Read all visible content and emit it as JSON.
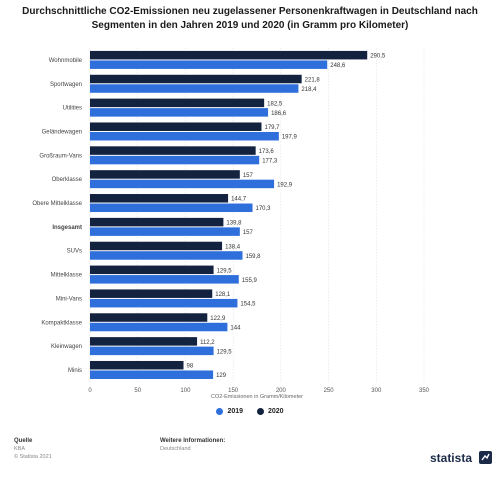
{
  "title": "Durchschnittliche CO2-Emissionen neu zugelassener Personenkraftwagen in Deutschland nach Segmenten in den Jahren 2019 und 2020 (in Gramm pro Kilometer)",
  "chart_data": {
    "type": "bar",
    "orientation": "horizontal",
    "categories": [
      "Wohnmobile",
      "Sportwagen",
      "Utilities",
      "Geländewagen",
      "Großraum-Vans",
      "Oberklasse",
      "Obere Mittelklasse",
      "Insgesamt",
      "SUVs",
      "Mittelklasse",
      "Mini-Vans",
      "Kompaktklasse",
      "Kleinwagen",
      "Minis"
    ],
    "bold_category": "Insgesamt",
    "series": [
      {
        "name": "2020",
        "color": "#13223f",
        "values": [
          290.5,
          221.8,
          182.5,
          179.7,
          173.6,
          157,
          144.7,
          139.8,
          138.4,
          129.5,
          128.1,
          122.9,
          112.2,
          98
        ]
      },
      {
        "name": "2019",
        "color": "#2e6fdc",
        "values": [
          248.6,
          218.4,
          186.6,
          197.9,
          177.3,
          192.9,
          170.3,
          157,
          159.8,
          155.9,
          154.5,
          144,
          129.5,
          129
        ]
      }
    ],
    "value_labels_2020": [
      "290,5",
      "221,8",
      "182,5",
      "179,7",
      "173,6",
      "157",
      "144,7",
      "139,8",
      "138,4",
      "129,5",
      "128,1",
      "122,9",
      "112,2",
      "98"
    ],
    "value_labels_2019": [
      "248,6",
      "218,4",
      "186,6",
      "197,9",
      "177,3",
      "192,9",
      "170,3",
      "157",
      "159,8",
      "155,9",
      "154,5",
      "144",
      "129,5",
      "129"
    ],
    "xlabel": "CO2-Emissionen in Gramm/Kilometer",
    "xlim": [
      0,
      350
    ],
    "xticks": [
      0,
      50,
      100,
      150,
      200,
      250,
      300,
      350
    ],
    "grid": true,
    "legend_position": "bottom"
  },
  "legend": [
    {
      "label": "2019",
      "color": "#2e6fdc"
    },
    {
      "label": "2020",
      "color": "#13223f"
    }
  ],
  "footer": {
    "source_head": "Quelle",
    "source_lines": [
      "KBA",
      "© Statista 2021"
    ],
    "info_head": "Weitere Informationen:",
    "info_lines": [
      "Deutschland"
    ],
    "brand": "statista"
  }
}
